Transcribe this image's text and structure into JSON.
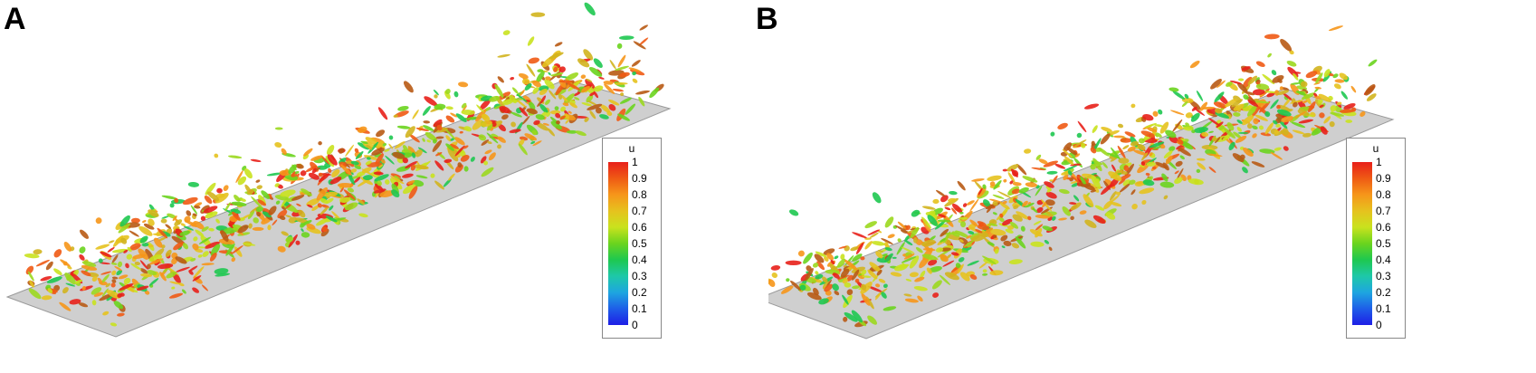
{
  "panels": [
    {
      "label": "A",
      "legend": {
        "title": "u",
        "ticks": [
          "1",
          "0.9",
          "0.8",
          "0.7",
          "0.6",
          "0.5",
          "0.4",
          "0.3",
          "0.2",
          "0.1",
          "0"
        ]
      }
    },
    {
      "label": "B",
      "legend": {
        "title": "u",
        "ticks": [
          "1",
          "0.9",
          "0.8",
          "0.7",
          "0.6",
          "0.5",
          "0.4",
          "0.3",
          "0.2",
          "0.1",
          "0"
        ]
      }
    }
  ],
  "colors": {
    "plate": "#c9c9c9",
    "scale": [
      "#e8201a",
      "#ef5a14",
      "#f6961a",
      "#e6c21e",
      "#c9e21e",
      "#6ad41e",
      "#1ec850",
      "#1ec8a8",
      "#1ea6e0",
      "#1e5ee8",
      "#1e1ee6"
    ]
  }
}
